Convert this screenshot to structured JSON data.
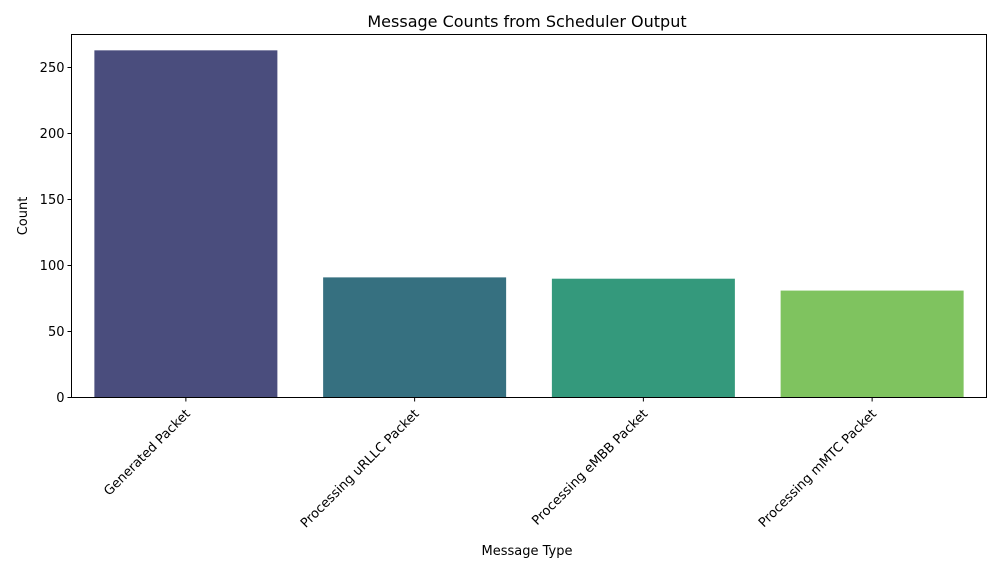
{
  "chart_data": {
    "type": "bar",
    "title": "Message Counts from Scheduler Output",
    "xlabel": "Message Type",
    "ylabel": "Count",
    "categories": [
      "Generated Packet",
      "Processing uRLLC Packet",
      "Processing eMBB Packet",
      "Processing mMTC Packet"
    ],
    "values": [
      263,
      91,
      90,
      81
    ],
    "colors": [
      "#4a4d7d",
      "#367080",
      "#34997c",
      "#7fc35f"
    ],
    "ylim": [
      0,
      275
    ],
    "yticks": [
      0,
      50,
      100,
      150,
      200,
      250
    ],
    "grid": false,
    "legend": "none"
  }
}
